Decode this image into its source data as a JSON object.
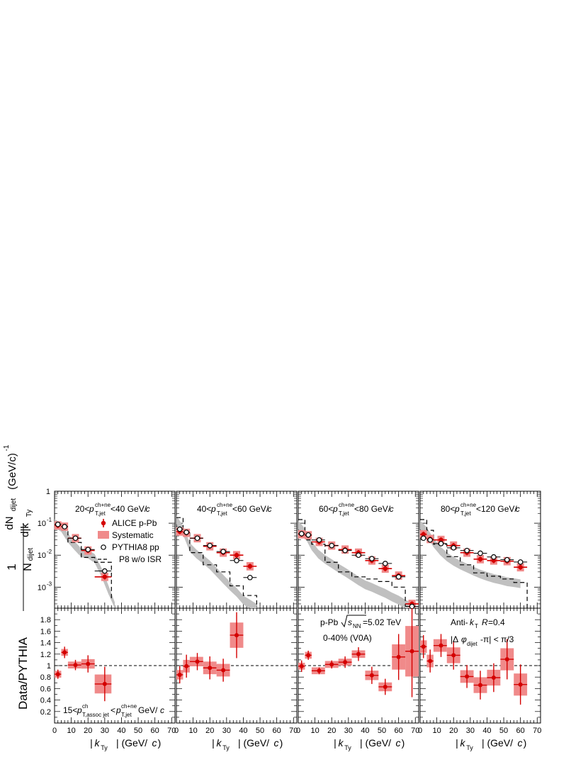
{
  "colors": {
    "alice": "#d40000",
    "systematic": "#f08a8a",
    "pythia_marker": "#000000",
    "band": "#c0c0c0"
  },
  "labels": {
    "ylabel_top": "dN_dijet/d|k_Ty| (GeV/c)^-1 normalized by N_dijet",
    "ylabel_bottom": "Data/PYTHIA",
    "xlabel": "|k_Ty| (GeV/c)",
    "panel_titles": [
      "20<p_T,jet^ch+ne<40 GeV/c",
      "40<p_T,jet^ch+ne<60 GeV/c",
      "60<p_T,jet^ch+ne<80 GeV/c",
      "80<p_T,jet^ch+ne<120 GeV/c"
    ],
    "legend": [
      "ALICE p-Pb",
      "Systematic",
      "PYTHIA8 pp",
      "P8 w/o ISR"
    ],
    "annotation_system": "p-Pb √s_NN=5.02 TeV",
    "annotation_centrality": "0-40% (V0A)",
    "annotation_algo": "Anti-k_T R=0.4",
    "annotation_dphi": "|Δφ_dijet-π| < π/3",
    "annotation_assoc": "15<p_T,assoc jet^ch < p_T,jet^ch+ne GeV/c",
    "xticks": [
      "0",
      "10",
      "20",
      "30",
      "40",
      "50",
      "60",
      "70"
    ],
    "yticks_top": [
      "1",
      "10^-1",
      "10^-2",
      "10^-3"
    ],
    "yticks_bottom": [
      "0.2",
      "0.4",
      "0.6",
      "0.8",
      "1",
      "1.2",
      "1.4",
      "1.6",
      "1.8"
    ]
  },
  "chart_data": [
    {
      "type": "scatter",
      "title": "20<p_T,jet^ch+ne<40 GeV/c",
      "xlim": [
        0,
        72
      ],
      "ylim_top": [
        0.00022,
        1
      ],
      "ylim_bottom": [
        0,
        2
      ],
      "y_scale_top": "log",
      "alice": [
        [
          2,
          0.085
        ],
        [
          6,
          0.078
        ],
        [
          12.5,
          0.034
        ],
        [
          20,
          0.014
        ],
        [
          30,
          0.0021
        ]
      ],
      "alice_bins": [
        [
          0,
          4
        ],
        [
          4,
          8
        ],
        [
          8,
          16
        ],
        [
          16,
          24
        ],
        [
          24,
          34
        ]
      ],
      "pythia": [
        [
          2,
          0.092
        ],
        [
          6,
          0.078
        ],
        [
          12.5,
          0.034
        ],
        [
          20,
          0.015
        ],
        [
          30,
          0.0032
        ]
      ],
      "noisr": [
        [
          0,
          0.1
        ],
        [
          4,
          0.06
        ],
        [
          8,
          0.025
        ],
        [
          16,
          0.0085
        ],
        [
          24,
          0.006
        ],
        [
          34,
          0.0004
        ]
      ],
      "band_center": [
        [
          0,
          0.1
        ],
        [
          4,
          0.075
        ],
        [
          8,
          0.035
        ],
        [
          12,
          0.02
        ],
        [
          16,
          0.012
        ],
        [
          20,
          0.011
        ],
        [
          24,
          0.008
        ],
        [
          28,
          0.003
        ],
        [
          32,
          0.0009
        ],
        [
          36,
          0.00025
        ]
      ],
      "ratio": [
        0.85,
        1.23,
        1.01,
        1.03,
        0.68
      ],
      "ratio_err": [
        0.08,
        0.1,
        0.09,
        0.15,
        0.3
      ]
    },
    {
      "type": "scatter",
      "title": "40<p_T,jet^ch+ne<60 GeV/c",
      "xlim": [
        0,
        72
      ],
      "ylim_top": [
        0.00022,
        1
      ],
      "ylim_bottom": [
        0,
        2
      ],
      "y_scale_top": "log",
      "alice": [
        [
          2,
          0.055
        ],
        [
          6,
          0.05
        ],
        [
          12.5,
          0.034
        ],
        [
          20,
          0.019
        ],
        [
          28,
          0.012
        ],
        [
          36,
          0.01
        ],
        [
          44,
          0.0045
        ]
      ],
      "alice_bins": [
        [
          0,
          4
        ],
        [
          4,
          8
        ],
        [
          8,
          16
        ],
        [
          16,
          24
        ],
        [
          24,
          32
        ],
        [
          32,
          40
        ],
        [
          40,
          48
        ]
      ],
      "pythia": [
        [
          2,
          0.065
        ],
        [
          6,
          0.052
        ],
        [
          12.5,
          0.034
        ],
        [
          20,
          0.02
        ],
        [
          28,
          0.013
        ],
        [
          36,
          0.0068
        ],
        [
          44,
          0.002
        ]
      ],
      "noisr": [
        [
          0,
          0.15
        ],
        [
          4,
          0.05
        ],
        [
          8,
          0.012
        ],
        [
          16,
          0.005
        ],
        [
          24,
          0.003
        ],
        [
          32,
          0.0011
        ],
        [
          40,
          0.00055
        ],
        [
          48,
          0.00025
        ]
      ],
      "band_center": [
        [
          0,
          0.13
        ],
        [
          4,
          0.06
        ],
        [
          8,
          0.018
        ],
        [
          12,
          0.011
        ],
        [
          16,
          0.0075
        ],
        [
          20,
          0.005
        ],
        [
          24,
          0.003
        ],
        [
          28,
          0.0018
        ],
        [
          32,
          0.0011
        ],
        [
          36,
          0.0007
        ],
        [
          40,
          0.0004
        ],
        [
          44,
          0.0003
        ],
        [
          48,
          0.00022
        ]
      ],
      "ratio": [
        0.84,
        0.99,
        1.07,
        0.96,
        0.92,
        1.53
      ],
      "ratio_err": [
        0.15,
        0.2,
        0.15,
        0.2,
        0.2,
        0.4
      ]
    },
    {
      "type": "scatter",
      "title": "60<p_T,jet^ch+ne<80 GeV/c",
      "xlim": [
        0,
        72
      ],
      "ylim_top": [
        0.00022,
        1
      ],
      "ylim_bottom": [
        0,
        2
      ],
      "y_scale_top": "log",
      "alice": [
        [
          2,
          0.045
        ],
        [
          6,
          0.042
        ],
        [
          12.5,
          0.026
        ],
        [
          20,
          0.02
        ],
        [
          28,
          0.015
        ],
        [
          36,
          0.012
        ],
        [
          44,
          0.0068
        ],
        [
          52,
          0.0038
        ],
        [
          60,
          0.0023
        ],
        [
          68,
          0.0003
        ]
      ],
      "alice_bins": [
        [
          0,
          4
        ],
        [
          4,
          8
        ],
        [
          8,
          16
        ],
        [
          16,
          24
        ],
        [
          24,
          32
        ],
        [
          32,
          40
        ],
        [
          40,
          48
        ],
        [
          48,
          56
        ],
        [
          56,
          64
        ],
        [
          64,
          72
        ]
      ],
      "pythia": [
        [
          2,
          0.047
        ],
        [
          6,
          0.043
        ],
        [
          12.5,
          0.03
        ],
        [
          20,
          0.02
        ],
        [
          28,
          0.014
        ],
        [
          36,
          0.01
        ],
        [
          44,
          0.0078
        ],
        [
          52,
          0.0055
        ],
        [
          60,
          0.0021
        ],
        [
          68,
          0.00025
        ]
      ],
      "noisr": [
        [
          0,
          0.13
        ],
        [
          4,
          0.03
        ],
        [
          8,
          0.022
        ],
        [
          16,
          0.006
        ],
        [
          24,
          0.003
        ],
        [
          32,
          0.0021
        ],
        [
          40,
          0.0018
        ],
        [
          48,
          0.0015
        ],
        [
          56,
          0.001
        ],
        [
          64,
          0.00025
        ]
      ],
      "band_center": [
        [
          0,
          0.09
        ],
        [
          4,
          0.05
        ],
        [
          8,
          0.02
        ],
        [
          12,
          0.011
        ],
        [
          16,
          0.0075
        ],
        [
          20,
          0.0055
        ],
        [
          24,
          0.004
        ],
        [
          28,
          0.003
        ],
        [
          32,
          0.0022
        ],
        [
          36,
          0.0016
        ],
        [
          40,
          0.0012
        ],
        [
          44,
          0.001
        ],
        [
          48,
          0.0008
        ],
        [
          52,
          0.00065
        ],
        [
          56,
          0.0005
        ],
        [
          60,
          0.0004
        ],
        [
          64,
          0.0003
        ],
        [
          68,
          0.00023
        ]
      ],
      "ratio": [
        0.99,
        1.18,
        0.91,
        1.02,
        1.06,
        1.2,
        0.83,
        0.63,
        1.15,
        1.25
      ],
      "ratio_err": [
        0.1,
        0.08,
        0.06,
        0.07,
        0.1,
        0.12,
        0.15,
        0.14,
        0.4,
        0.8
      ]
    },
    {
      "type": "scatter",
      "title": "80<p_T,jet^ch+ne<120 GeV/c",
      "xlim": [
        0,
        72
      ],
      "ylim_top": [
        0.00022,
        1
      ],
      "ylim_bottom": [
        0,
        2
      ],
      "y_scale_top": "log",
      "alice": [
        [
          2,
          0.045
        ],
        [
          6,
          0.032
        ],
        [
          12.5,
          0.03
        ],
        [
          20,
          0.02
        ],
        [
          28,
          0.012
        ],
        [
          36,
          0.0075
        ],
        [
          44,
          0.0068
        ],
        [
          52,
          0.0065
        ],
        [
          60,
          0.0042
        ]
      ],
      "alice_bins": [
        [
          0,
          4
        ],
        [
          4,
          8
        ],
        [
          8,
          16
        ],
        [
          16,
          24
        ],
        [
          24,
          32
        ],
        [
          32,
          40
        ],
        [
          40,
          48
        ],
        [
          48,
          56
        ],
        [
          56,
          64
        ]
      ],
      "pythia": [
        [
          2,
          0.034
        ],
        [
          6,
          0.03
        ],
        [
          12.5,
          0.023
        ],
        [
          20,
          0.017
        ],
        [
          28,
          0.014
        ],
        [
          36,
          0.0115
        ],
        [
          44,
          0.0088
        ],
        [
          52,
          0.0072
        ],
        [
          60,
          0.0061
        ]
      ],
      "noisr": [
        [
          0,
          0.13
        ],
        [
          4,
          0.06
        ],
        [
          8,
          0.022
        ],
        [
          16,
          0.009
        ],
        [
          24,
          0.005
        ],
        [
          32,
          0.0028
        ],
        [
          40,
          0.0022
        ],
        [
          48,
          0.0018
        ],
        [
          56,
          0.0014
        ],
        [
          64,
          0.0001
        ]
      ],
      "band_center": [
        [
          0,
          0.09
        ],
        [
          4,
          0.055
        ],
        [
          8,
          0.025
        ],
        [
          12,
          0.014
        ],
        [
          16,
          0.009
        ],
        [
          20,
          0.0065
        ],
        [
          24,
          0.005
        ],
        [
          28,
          0.004
        ],
        [
          32,
          0.0032
        ],
        [
          36,
          0.0026
        ],
        [
          40,
          0.0022
        ],
        [
          44,
          0.0019
        ],
        [
          48,
          0.0017
        ],
        [
          52,
          0.0015
        ],
        [
          56,
          0.0014
        ],
        [
          60,
          0.0013
        ]
      ],
      "ratio": [
        1.33,
        1.08,
        1.35,
        1.18,
        0.81,
        0.66,
        0.79,
        1.11,
        0.67
      ],
      "ratio_err": [
        0.2,
        0.2,
        0.2,
        0.25,
        0.2,
        0.25,
        0.25,
        0.35,
        0.35
      ]
    }
  ]
}
